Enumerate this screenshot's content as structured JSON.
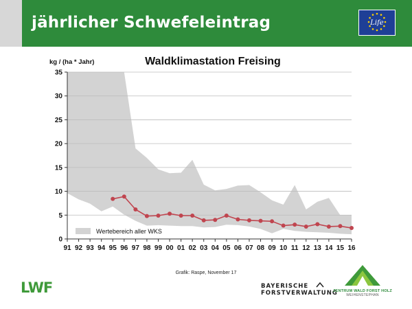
{
  "header": {
    "title": "jährlicher Schwefeleintrag"
  },
  "logos": {
    "eu_life_text": "Life",
    "lwf_text": "LWF",
    "bayern_line1": "BAYERISCHE",
    "bayern_line2": "FORSTVERWALTUNG",
    "zentrum_name": "ZENTRUM WALD FORST HOLZ",
    "zentrum_sub": "WEIHENSTEPHAN"
  },
  "footer": {
    "credit": "Grafik: Raspe, November 17"
  },
  "colors": {
    "header_green": "#2e8b3b",
    "band_gray": "#d3d3d3",
    "series_red": "#c0454f"
  },
  "chart_data": {
    "type": "line",
    "title": "Waldklimastation Freising",
    "ylabel": "kg / (ha * Jahr)",
    "xlabel": "",
    "ylim": [
      0,
      35
    ],
    "yticks": [
      0,
      5,
      10,
      15,
      20,
      25,
      30,
      35
    ],
    "grid": "horizontal",
    "x": [
      "91",
      "92",
      "93",
      "94",
      "95",
      "96",
      "97",
      "98",
      "99",
      "00",
      "01",
      "02",
      "03",
      "04",
      "05",
      "06",
      "07",
      "08",
      "09",
      "10",
      "11",
      "12",
      "13",
      "14",
      "15",
      "16"
    ],
    "band": {
      "name": "Wertebereich  aller WKS",
      "upper": [
        null,
        null,
        null,
        null,
        35,
        35,
        19,
        17,
        14.6,
        13.8,
        13.9,
        16.6,
        11.4,
        10.2,
        10.5,
        11.2,
        11.3,
        9.8,
        8.1,
        7.2,
        11.3,
        6.2,
        7.8,
        8.6,
        5,
        5
      ],
      "lower": [
        9.6,
        8.3,
        7.4,
        5.8,
        6.8,
        5.1,
        3.8,
        2.8,
        2.9,
        2.8,
        2.7,
        2.7,
        2.4,
        2.5,
        3,
        2.9,
        2.6,
        2.1,
        1.2,
        2.1,
        1.7,
        1.5,
        1.4,
        1.3,
        1.1,
        1.0
      ]
    },
    "series": [
      {
        "values": [
          null,
          null,
          null,
          null,
          8.4,
          8.9,
          6.2,
          4.8,
          4.9,
          5.3,
          4.9,
          4.9,
          3.9,
          4.0,
          4.9,
          4.1,
          3.9,
          3.8,
          3.7,
          2.8,
          3.0,
          2.6,
          3.1,
          2.6,
          2.7,
          2.3
        ]
      }
    ],
    "legend_position": "bottom-left"
  }
}
